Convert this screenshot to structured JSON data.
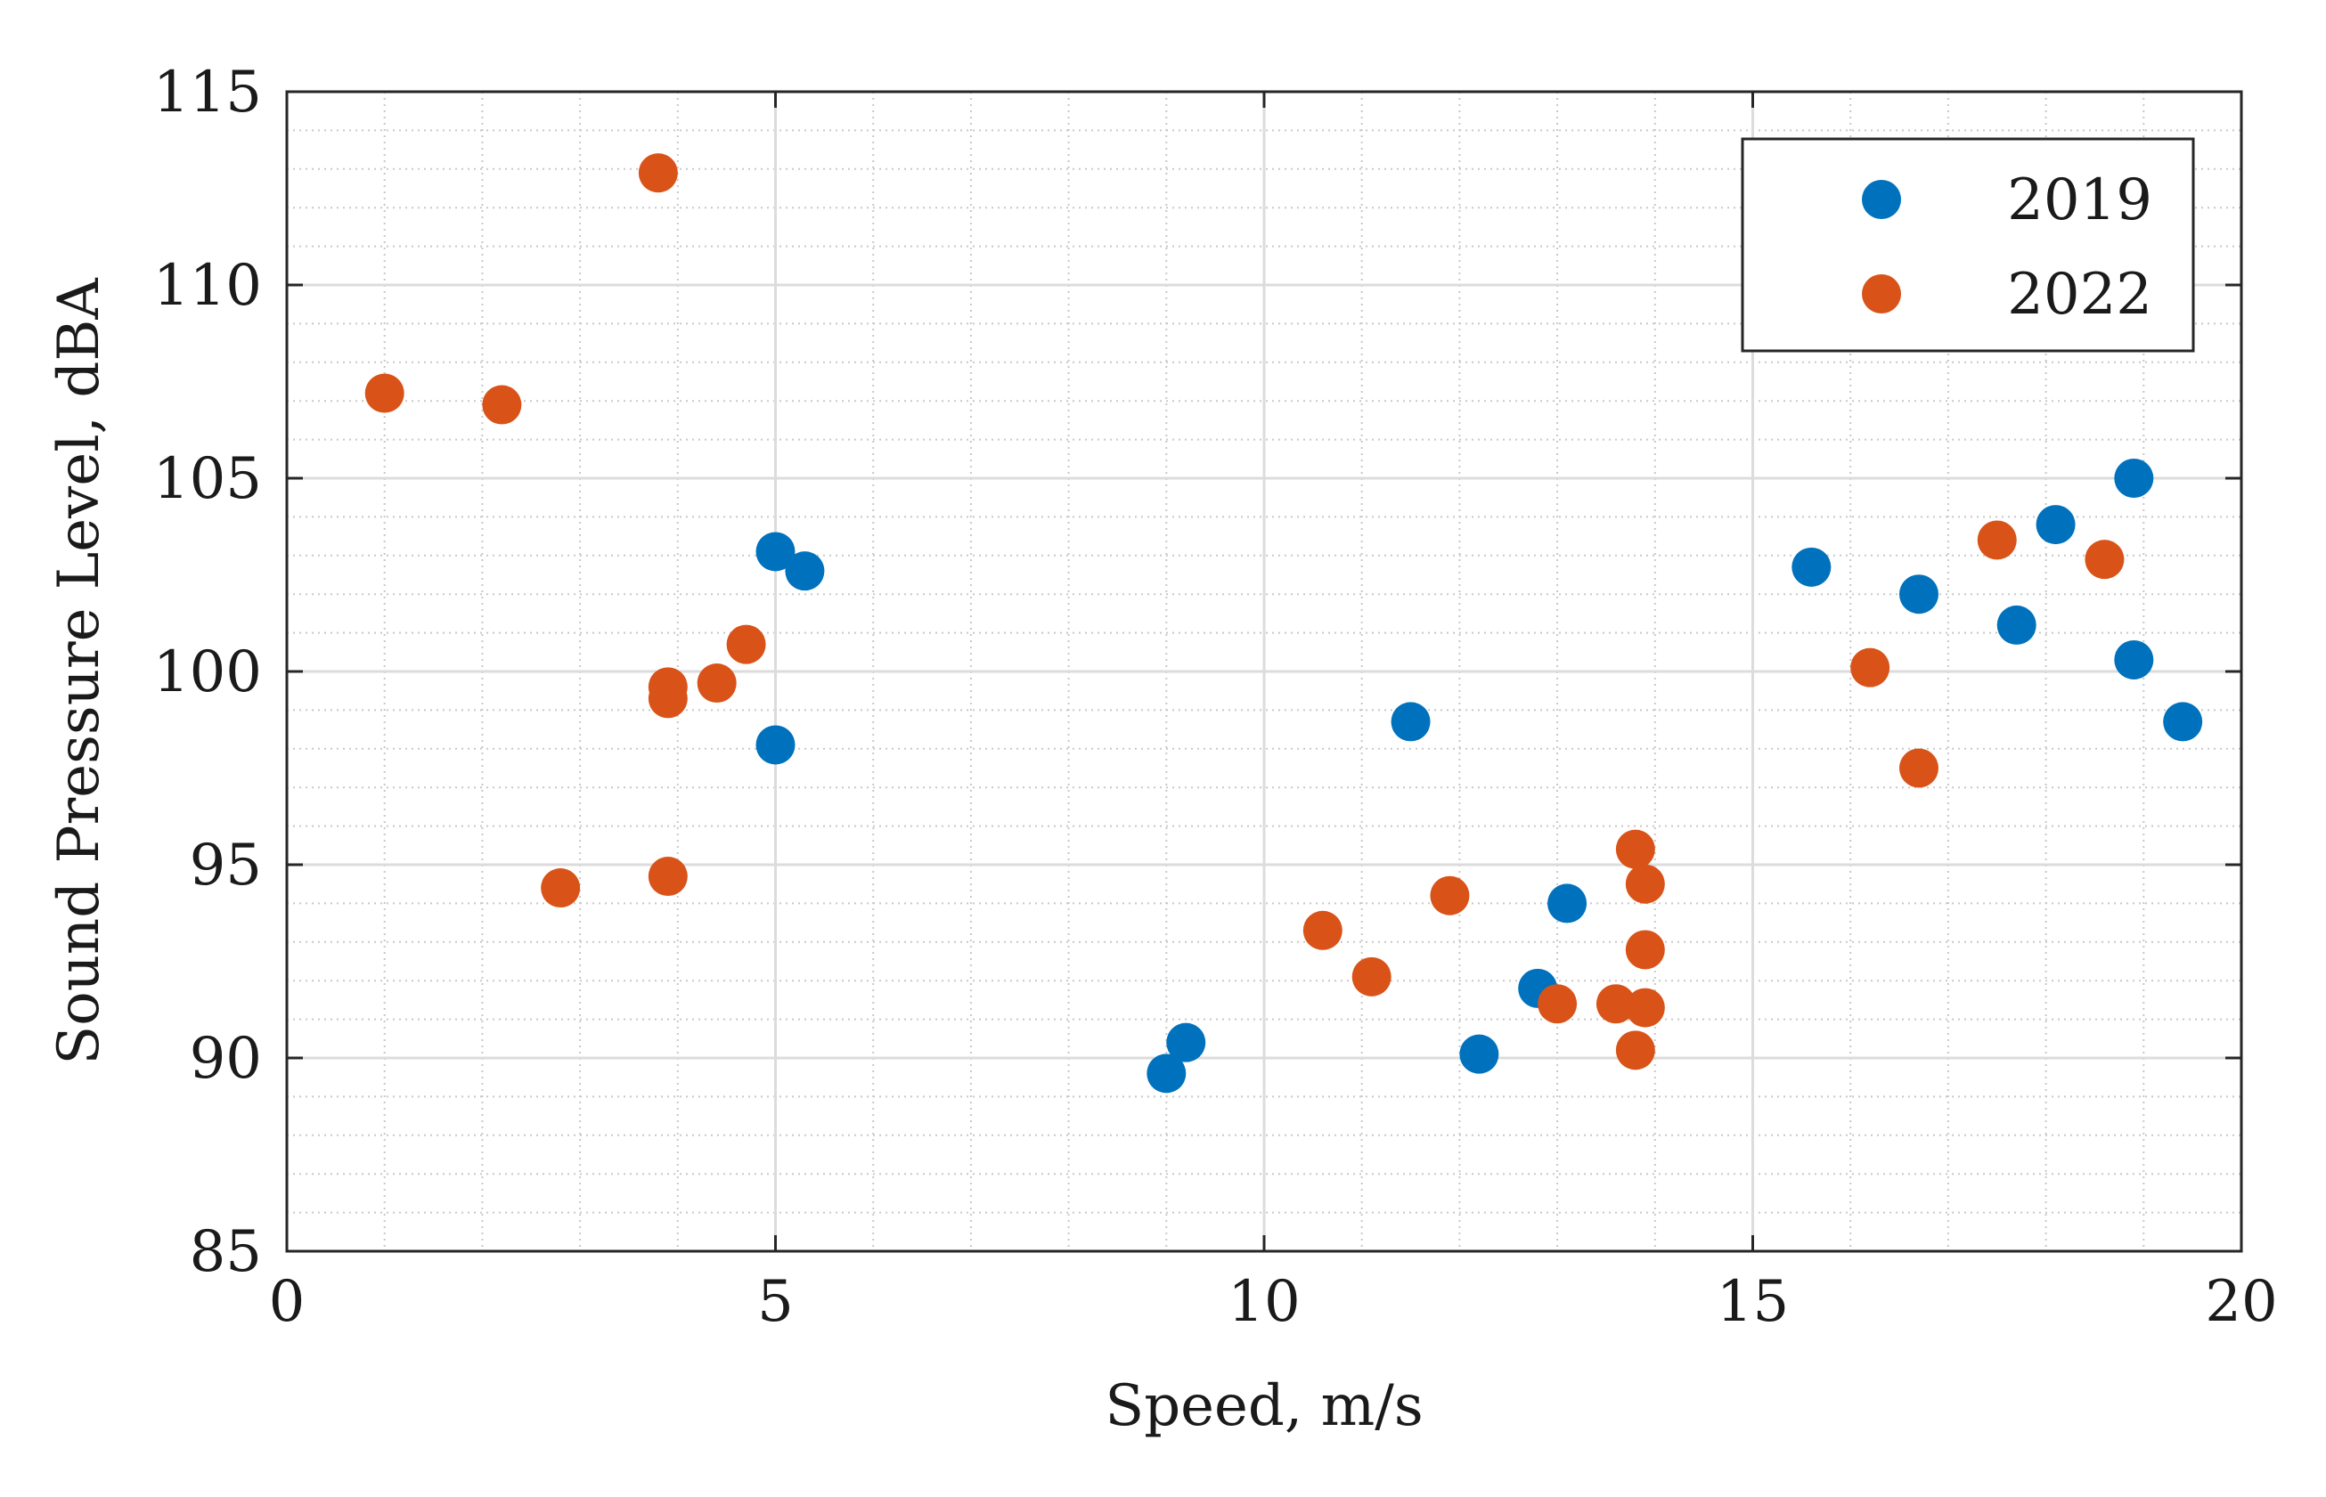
{
  "chart_data": {
    "type": "scatter",
    "xlabel": "Speed, m/s",
    "ylabel": "Sound Pressure Level, dBA",
    "xlim": [
      0,
      20
    ],
    "ylim": [
      85,
      115
    ],
    "xticks": [
      0,
      5,
      10,
      15,
      20
    ],
    "yticks": [
      85,
      90,
      95,
      100,
      105,
      110,
      115
    ],
    "grid": true,
    "minor_grid": true,
    "legend": {
      "position": "top-right"
    },
    "series": [
      {
        "name": "2019",
        "color": "#0072BD",
        "points": [
          [
            5.0,
            103.1
          ],
          [
            5.3,
            102.6
          ],
          [
            5.0,
            98.1
          ],
          [
            9.0,
            89.6
          ],
          [
            9.2,
            90.4
          ],
          [
            11.5,
            98.7
          ],
          [
            12.2,
            90.1
          ],
          [
            12.8,
            91.8
          ],
          [
            13.1,
            94.0
          ],
          [
            15.6,
            102.7
          ],
          [
            16.7,
            102.0
          ],
          [
            17.7,
            101.2
          ],
          [
            18.1,
            103.8
          ],
          [
            18.9,
            105.0
          ],
          [
            18.9,
            100.3
          ],
          [
            19.4,
            98.7
          ]
        ]
      },
      {
        "name": "2022",
        "color": "#D95319",
        "points": [
          [
            1.0,
            107.2
          ],
          [
            2.2,
            106.9
          ],
          [
            3.8,
            112.9
          ],
          [
            2.8,
            94.4
          ],
          [
            3.9,
            94.7
          ],
          [
            3.9,
            99.6
          ],
          [
            3.9,
            99.3
          ],
          [
            4.4,
            99.7
          ],
          [
            4.7,
            100.7
          ],
          [
            10.6,
            93.3
          ],
          [
            11.1,
            92.1
          ],
          [
            11.9,
            94.2
          ],
          [
            13.0,
            91.4
          ],
          [
            13.6,
            91.4
          ],
          [
            13.8,
            95.4
          ],
          [
            13.9,
            94.5
          ],
          [
            13.9,
            92.8
          ],
          [
            13.9,
            91.3
          ],
          [
            13.8,
            90.2
          ],
          [
            16.2,
            100.1
          ],
          [
            16.7,
            97.5
          ],
          [
            17.5,
            103.4
          ],
          [
            18.6,
            102.9
          ]
        ]
      }
    ]
  }
}
